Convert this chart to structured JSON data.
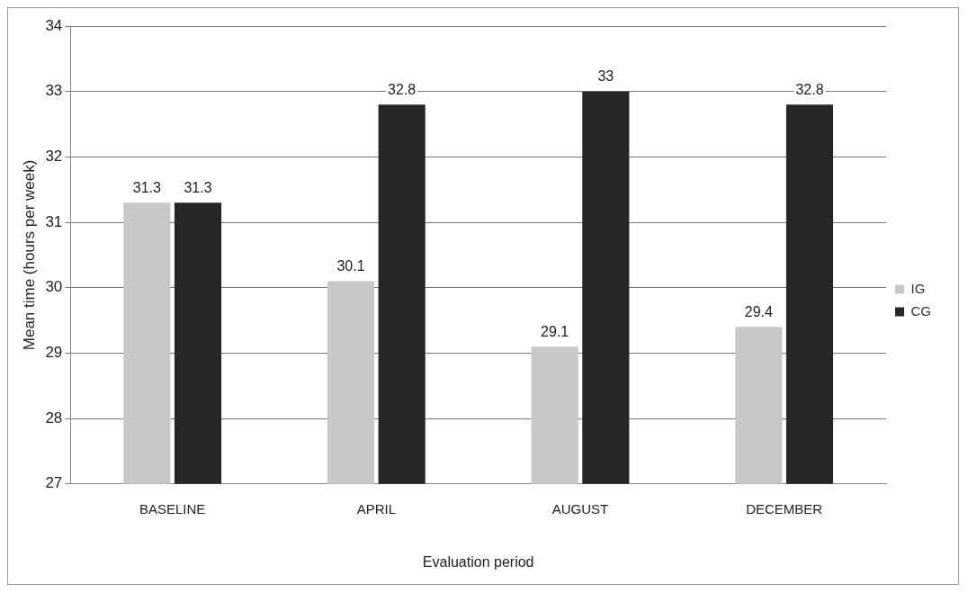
{
  "chart_data": {
    "type": "bar",
    "xlabel": "Evaluation period",
    "ylabel": "Mean time (hours per week)",
    "categories": [
      "BASELINE",
      "APRIL",
      "AUGUST",
      "DECEMBER"
    ],
    "series": [
      {
        "name": "IG",
        "color": "#c8c8c8",
        "values": [
          31.3,
          30.1,
          29.1,
          29.4
        ]
      },
      {
        "name": "CG",
        "color": "#262626",
        "values": [
          31.3,
          32.8,
          33,
          32.8
        ]
      }
    ],
    "ylim": [
      27,
      34
    ],
    "yticks": [
      27,
      28,
      29,
      30,
      31,
      32,
      33,
      34
    ],
    "grid": "y",
    "legend": "right",
    "data_labels": true
  }
}
